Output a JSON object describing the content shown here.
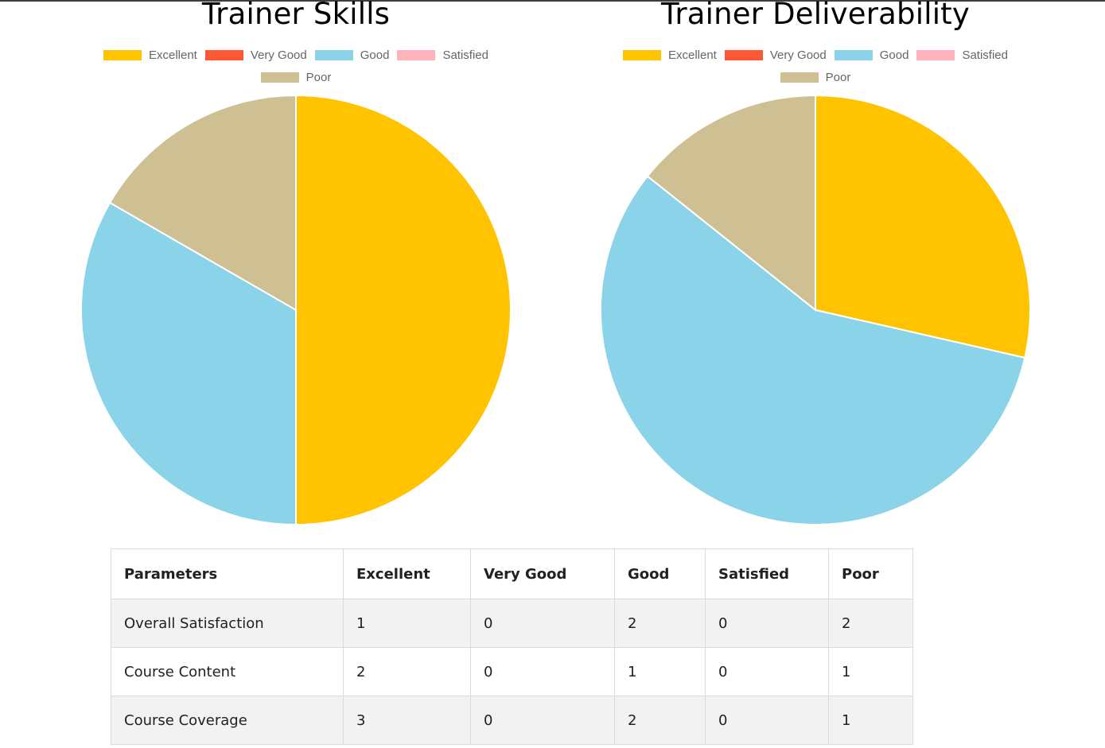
{
  "legend": [
    {
      "label": "Excellent",
      "color": "#ffc300"
    },
    {
      "label": "Very Good",
      "color": "#fd5734"
    },
    {
      "label": "Good",
      "color": "#8bd3e8"
    },
    {
      "label": "Satisfied",
      "color": "#ffb3ba"
    },
    {
      "label": "Poor",
      "color": "#cfc094"
    }
  ],
  "chart_data": [
    {
      "type": "pie",
      "title": "Trainer Skills",
      "categories": [
        "Excellent",
        "Very Good",
        "Good",
        "Satisfied",
        "Poor"
      ],
      "values": [
        3,
        0,
        2,
        0,
        1
      ],
      "colors": [
        "#ffc300",
        "#fd5734",
        "#8bd3e8",
        "#ffb3ba",
        "#cfc094"
      ],
      "legend_position": "top"
    },
    {
      "type": "pie",
      "title": "Trainer Deliverability",
      "categories": [
        "Excellent",
        "Very Good",
        "Good",
        "Satisfied",
        "Poor"
      ],
      "values": [
        2,
        0,
        4,
        0,
        1
      ],
      "colors": [
        "#ffc300",
        "#fd5734",
        "#8bd3e8",
        "#ffb3ba",
        "#cfc094"
      ],
      "legend_position": "top"
    }
  ],
  "table": {
    "headers": [
      "Parameters",
      "Excellent",
      "Very Good",
      "Good",
      "Satisfied",
      "Poor"
    ],
    "rows": [
      [
        "Overall Satisfaction",
        "1",
        "0",
        "2",
        "0",
        "2"
      ],
      [
        "Course Content",
        "2",
        "0",
        "1",
        "0",
        "1"
      ],
      [
        "Course Coverage",
        "3",
        "0",
        "2",
        "0",
        "1"
      ]
    ]
  }
}
